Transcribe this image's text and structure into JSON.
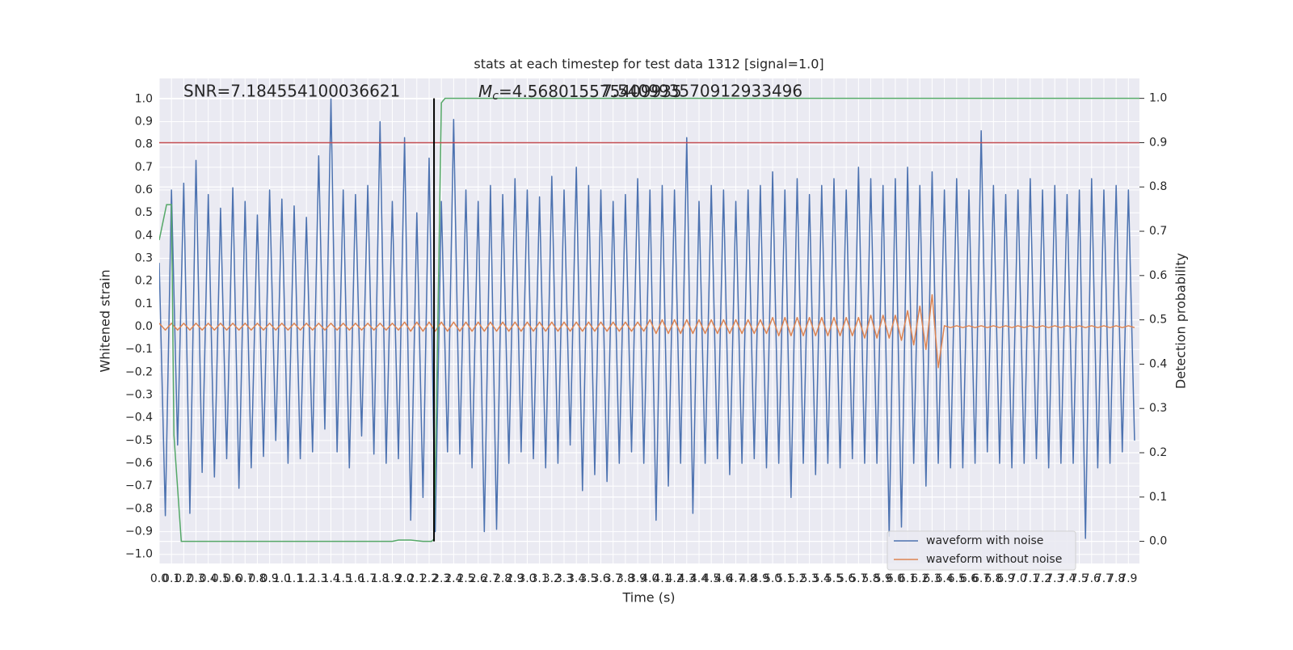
{
  "chart_data": {
    "type": "line",
    "title": "stats at each timestep for test data 1312 [signal=1.0]",
    "x_label": "Time (s)",
    "y_label": "Whitened strain",
    "y2_label": "Detection probability",
    "annotations": {
      "snr": "SNR=7.184554100036621",
      "mass_symbol": "M",
      "mass_subscript": "c",
      "mass_value": "=4.568015575409935",
      "overlap_text": "7.540993570912933496"
    },
    "grid": true,
    "background": "#eaeaf2",
    "legend": "lower right",
    "xlim": [
      0,
      7.99
    ],
    "ylim": [
      -1.04,
      1.09
    ],
    "y2lim": [
      -0.05,
      1.045
    ],
    "xticks": [
      {
        "value": 0,
        "label": "0.0"
      },
      0.1,
      0.2,
      0.3,
      0.4,
      0.5,
      0.6,
      0.7,
      0.8,
      0.9,
      {
        "value": 1,
        "label": "1.0"
      },
      1.1,
      1.2,
      1.3,
      1.4,
      1.5,
      1.6,
      1.7,
      1.8,
      1.9,
      {
        "value": 2,
        "label": "2.0"
      },
      2.1,
      2.2,
      2.3,
      2.4,
      2.5,
      2.6,
      2.7,
      2.8,
      2.9,
      {
        "value": 3,
        "label": "3.0"
      },
      3.1,
      3.2,
      3.3,
      3.4,
      3.5,
      3.6,
      3.7,
      3.8,
      3.9,
      {
        "value": 4,
        "label": "4.0"
      },
      4.1,
      4.2,
      4.3,
      4.4,
      4.5,
      4.6,
      4.7,
      4.8,
      4.9,
      {
        "value": 5,
        "label": "5.0"
      },
      5.1,
      5.2,
      5.3,
      5.4,
      5.5,
      5.6,
      5.7,
      5.8,
      5.9,
      {
        "value": 6,
        "label": "6.0"
      },
      6.1,
      6.2,
      6.3,
      6.4,
      6.5,
      6.6,
      6.7,
      6.8,
      6.9,
      {
        "value": 7,
        "label": "7.0"
      },
      7.1,
      7.2,
      7.3,
      7.4,
      7.5,
      7.6,
      7.7,
      7.8,
      7.9
    ],
    "yticks": [
      {
        "value": -1,
        "label": "−1.0"
      },
      {
        "value": -0.9,
        "label": "−0.9"
      },
      {
        "value": -0.8,
        "label": "−0.8"
      },
      {
        "value": -0.7,
        "label": "−0.7"
      },
      {
        "value": -0.6,
        "label": "−0.6"
      },
      {
        "value": -0.5,
        "label": "−0.5"
      },
      {
        "value": -0.4,
        "label": "−0.4"
      },
      {
        "value": -0.3,
        "label": "−0.3"
      },
      {
        "value": -0.2,
        "label": "−0.2"
      },
      {
        "value": -0.1,
        "label": "−0.1"
      },
      {
        "value": 0,
        "label": "0.0"
      },
      0.1,
      0.2,
      0.3,
      0.4,
      0.5,
      0.6,
      0.7,
      0.8,
      0.9,
      {
        "value": 1,
        "label": "1.0"
      }
    ],
    "y2ticks": [
      {
        "value": 0,
        "label": "0.0"
      },
      0.1,
      0.2,
      0.3,
      0.4,
      0.5,
      0.6,
      0.7,
      0.8,
      0.9,
      {
        "value": 1,
        "label": "1.0"
      }
    ],
    "x": [
      0,
      0.05,
      0.1,
      0.15,
      0.2,
      0.25,
      0.3,
      0.35,
      0.4,
      0.45,
      0.5,
      0.55,
      0.6,
      0.65,
      0.7,
      0.75,
      0.8,
      0.85,
      0.9,
      0.95,
      1,
      1.05,
      1.1,
      1.15,
      1.2,
      1.25,
      1.3,
      1.35,
      1.4,
      1.45,
      1.5,
      1.55,
      1.6,
      1.65,
      1.7,
      1.75,
      1.8,
      1.85,
      1.9,
      1.95,
      2,
      2.05,
      2.1,
      2.15,
      2.2,
      2.25,
      2.3,
      2.35,
      2.4,
      2.45,
      2.5,
      2.55,
      2.6,
      2.65,
      2.7,
      2.75,
      2.8,
      2.85,
      2.9,
      2.95,
      3,
      3.05,
      3.1,
      3.15,
      3.2,
      3.25,
      3.3,
      3.35,
      3.4,
      3.45,
      3.5,
      3.55,
      3.6,
      3.65,
      3.7,
      3.75,
      3.8,
      3.85,
      3.9,
      3.95,
      4,
      4.05,
      4.1,
      4.15,
      4.2,
      4.25,
      4.3,
      4.35,
      4.4,
      4.45,
      4.5,
      4.55,
      4.6,
      4.65,
      4.7,
      4.75,
      4.8,
      4.85,
      4.9,
      4.95,
      5,
      5.05,
      5.1,
      5.15,
      5.2,
      5.25,
      5.3,
      5.35,
      5.4,
      5.45,
      5.5,
      5.55,
      5.6,
      5.65,
      5.7,
      5.75,
      5.8,
      5.85,
      5.9,
      5.95,
      6,
      6.05,
      6.1,
      6.15,
      6.2,
      6.25,
      6.3,
      6.35,
      6.4,
      6.45,
      6.5,
      6.55,
      6.6,
      6.65,
      6.7,
      6.75,
      6.8,
      6.85,
      6.9,
      6.95,
      7,
      7.05,
      7.1,
      7.15,
      7.2,
      7.25,
      7.3,
      7.35,
      7.4,
      7.45,
      7.5,
      7.55,
      7.6,
      7.65,
      7.7,
      7.75,
      7.8,
      7.85,
      7.9,
      7.95
    ],
    "series": [
      {
        "name": "waveform with noise",
        "color": "#4c72b0",
        "values": [
          0.28,
          -0.83,
          0.6,
          -0.52,
          0.63,
          -0.82,
          0.73,
          -0.64,
          0.58,
          -0.66,
          0.52,
          -0.58,
          0.61,
          -0.71,
          0.55,
          -0.62,
          0.49,
          -0.57,
          0.6,
          -0.5,
          0.56,
          -0.6,
          0.53,
          -0.58,
          0.48,
          -0.55,
          0.75,
          -0.45,
          1.0,
          -0.55,
          0.6,
          -0.62,
          0.58,
          -0.48,
          0.62,
          -0.56,
          0.9,
          -0.6,
          0.55,
          -0.58,
          0.83,
          -0.85,
          0.5,
          -0.75,
          0.74,
          -0.9,
          0.55,
          -0.55,
          0.91,
          -0.56,
          0.6,
          -0.62,
          0.55,
          -0.9,
          0.62,
          -0.89,
          0.58,
          -0.6,
          0.65,
          -0.55,
          0.6,
          -0.58,
          0.57,
          -0.62,
          0.66,
          -0.6,
          0.6,
          -0.52,
          0.7,
          -0.72,
          0.62,
          -0.65,
          0.6,
          -0.68,
          0.55,
          -0.6,
          0.58,
          -0.55,
          0.65,
          -0.6,
          0.6,
          -0.85,
          0.62,
          -0.7,
          0.6,
          -0.6,
          0.83,
          -0.82,
          0.55,
          -0.6,
          0.62,
          -0.58,
          0.6,
          -0.65,
          0.55,
          -0.6,
          0.6,
          -0.58,
          0.62,
          -0.62,
          0.68,
          -0.6,
          0.6,
          -0.75,
          0.65,
          -0.6,
          0.58,
          -0.65,
          0.62,
          -0.6,
          0.65,
          -0.62,
          0.6,
          -0.58,
          0.7,
          -0.6,
          0.65,
          -0.6,
          0.62,
          -0.92,
          0.65,
          -0.88,
          0.7,
          -0.6,
          0.62,
          -0.7,
          0.68,
          -0.6,
          0.6,
          -0.62,
          0.65,
          -0.62,
          0.6,
          -0.6,
          0.86,
          -0.55,
          0.62,
          -0.6,
          0.58,
          -0.62,
          0.6,
          -0.6,
          0.65,
          -0.58,
          0.6,
          -0.62,
          0.62,
          -0.6,
          0.58,
          -0.6,
          0.6,
          -0.93,
          0.65,
          -0.62,
          0.6,
          -0.6,
          0.62,
          -0.55,
          0.6,
          -0.5
        ]
      },
      {
        "name": "waveform without noise",
        "color": "#dd8452",
        "values": [
          0.015,
          -0.015,
          0.015,
          -0.015,
          0.015,
          -0.015,
          0.015,
          -0.015,
          0.015,
          -0.015,
          0.015,
          -0.015,
          0.015,
          -0.015,
          0.015,
          -0.015,
          0.015,
          -0.015,
          0.015,
          -0.015,
          0.015,
          -0.015,
          0.015,
          -0.015,
          0.015,
          -0.015,
          0.015,
          -0.015,
          0.015,
          -0.015,
          0.015,
          -0.015,
          0.015,
          -0.015,
          0.015,
          -0.015,
          0.015,
          -0.015,
          0.015,
          -0.015,
          0.02,
          -0.02,
          0.02,
          -0.02,
          0.02,
          -0.02,
          0.02,
          -0.02,
          0.02,
          -0.02,
          0.02,
          -0.02,
          0.02,
          -0.02,
          0.02,
          -0.02,
          0.02,
          -0.02,
          0.02,
          -0.02,
          0.02,
          -0.02,
          0.02,
          -0.02,
          0.02,
          -0.02,
          0.02,
          -0.02,
          0.02,
          -0.02,
          0.02,
          -0.02,
          0.02,
          -0.02,
          0.02,
          -0.02,
          0.02,
          -0.02,
          0.02,
          -0.02,
          0.03,
          -0.03,
          0.03,
          -0.03,
          0.03,
          -0.03,
          0.03,
          -0.03,
          0.03,
          -0.03,
          0.03,
          -0.03,
          0.03,
          -0.03,
          0.03,
          -0.03,
          0.03,
          -0.03,
          0.03,
          -0.03,
          0.04,
          -0.04,
          0.04,
          -0.04,
          0.04,
          -0.04,
          0.04,
          -0.04,
          0.04,
          -0.04,
          0.04,
          -0.04,
          0.04,
          -0.04,
          0.04,
          -0.05,
          0.05,
          -0.05,
          0.05,
          -0.05,
          0.05,
          -0.06,
          0.07,
          -0.08,
          0.09,
          -0.1,
          0.14,
          -0.18,
          0.004,
          -0.004,
          0.004,
          -0.004,
          0.004,
          -0.004,
          0.004,
          -0.004,
          0.004,
          -0.004,
          0.004,
          -0.004,
          0.004,
          -0.004,
          0.004,
          -0.004,
          0.004,
          -0.004,
          0.004,
          -0.004,
          0.004,
          -0.004,
          0.004,
          -0.004,
          0.004,
          -0.004,
          0.004,
          -0.004,
          0.004,
          -0.004,
          0.004,
          -0.004
        ]
      }
    ],
    "probability": {
      "color": "#55a868",
      "axis": "y2",
      "x": [
        0,
        0.03,
        0.06,
        0.1,
        0.12,
        0.18,
        1.9,
        1.95,
        2.05,
        2.15,
        2.22,
        2.24,
        2.26,
        2.3,
        2.33,
        7.99
      ],
      "values": [
        0.68,
        0.72,
        0.76,
        0.76,
        0.24,
        0,
        0,
        0.003,
        0.003,
        0,
        0,
        0.005,
        0.3,
        0.99,
        1.0,
        1.0
      ]
    },
    "threshold": {
      "value": 0.9,
      "color": "#c44e52",
      "axis": "y2"
    },
    "event_x": 2.24,
    "event_color": "#000000"
  }
}
